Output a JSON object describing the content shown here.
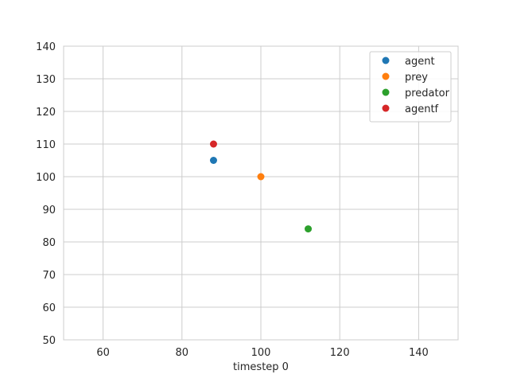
{
  "chart_data": {
    "type": "scatter",
    "title": "",
    "xlabel": "timestep 0",
    "ylabel": "",
    "xlim": [
      50,
      150
    ],
    "ylim": [
      50,
      140
    ],
    "xticks": [
      60,
      80,
      100,
      120,
      140
    ],
    "yticks": [
      50,
      60,
      70,
      80,
      90,
      100,
      110,
      120,
      130,
      140
    ],
    "grid": true,
    "legend_position": "top-right",
    "series": [
      {
        "name": "agent",
        "color": "#1f77b4",
        "x": [
          88
        ],
        "y": [
          105
        ]
      },
      {
        "name": "prey",
        "color": "#ff7f0e",
        "x": [
          100
        ],
        "y": [
          100
        ]
      },
      {
        "name": "predator",
        "color": "#2ca02c",
        "x": [
          112
        ],
        "y": [
          84
        ]
      },
      {
        "name": "agentf",
        "color": "#d62728",
        "x": [
          88
        ],
        "y": [
          110
        ]
      }
    ]
  }
}
